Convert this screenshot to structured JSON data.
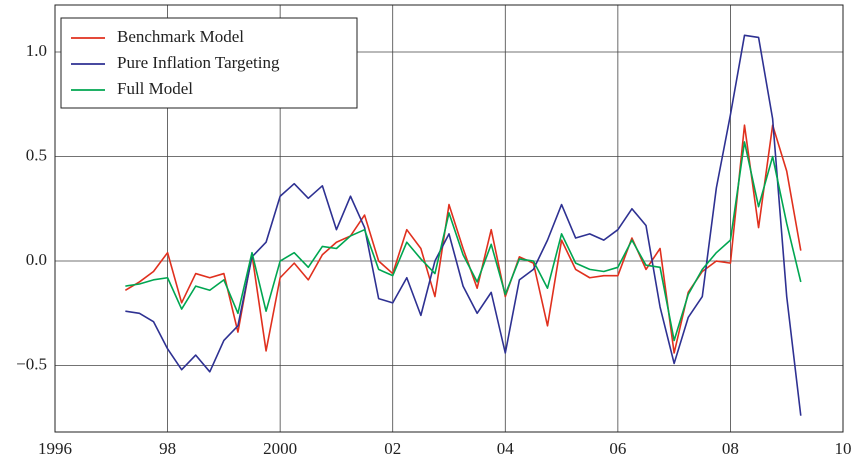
{
  "chart_data": {
    "type": "line",
    "x": [
      1997.25,
      1997.5,
      1997.75,
      1998,
      1998.25,
      1998.5,
      1998.75,
      1999,
      1999.25,
      1999.5,
      1999.75,
      2000,
      2000.25,
      2000.5,
      2000.75,
      2001,
      2001.25,
      2001.5,
      2001.75,
      2002,
      2002.25,
      2002.5,
      2002.75,
      2003,
      2003.25,
      2003.5,
      2003.75,
      2004,
      2004.25,
      2004.5,
      2004.75,
      2005,
      2005.25,
      2005.5,
      2005.75,
      2006,
      2006.25,
      2006.5,
      2006.75,
      2007,
      2007.25,
      2007.5,
      2007.75,
      2008,
      2008.25,
      2008.5,
      2008.75,
      2009,
      2009.25
    ],
    "series": [
      {
        "name": "Benchmark Model",
        "color": "#e0301e",
        "values": [
          -0.14,
          -0.1,
          -0.05,
          0.04,
          -0.2,
          -0.06,
          -0.08,
          -0.06,
          -0.34,
          0.03,
          -0.43,
          -0.08,
          -0.01,
          -0.09,
          0.03,
          0.09,
          0.12,
          0.22,
          0.0,
          -0.06,
          0.15,
          0.06,
          -0.17,
          0.27,
          0.06,
          -0.13,
          0.15,
          -0.17,
          0.02,
          -0.01,
          -0.31,
          0.1,
          -0.04,
          -0.08,
          -0.07,
          -0.07,
          0.11,
          -0.04,
          0.06,
          -0.44,
          -0.15,
          -0.05,
          0.0,
          -0.01,
          0.65,
          0.16,
          0.65,
          0.43,
          0.05
        ]
      },
      {
        "name": "Pure Inflation Targeting",
        "color": "#2e3192",
        "values": [
          -0.24,
          -0.25,
          -0.29,
          -0.42,
          -0.52,
          -0.45,
          -0.53,
          -0.38,
          -0.31,
          0.02,
          0.09,
          0.31,
          0.37,
          0.3,
          0.36,
          0.15,
          0.31,
          0.16,
          -0.18,
          -0.2,
          -0.08,
          -0.26,
          0.0,
          0.13,
          -0.12,
          -0.25,
          -0.15,
          -0.44,
          -0.09,
          -0.04,
          0.1,
          0.27,
          0.11,
          0.13,
          0.1,
          0.15,
          0.25,
          0.17,
          -0.22,
          -0.49,
          -0.27,
          -0.17,
          0.35,
          0.7,
          1.08,
          1.07,
          0.68,
          -0.17,
          -0.74
        ]
      },
      {
        "name": "Full Model",
        "color": "#00a651",
        "values": [
          -0.12,
          -0.11,
          -0.09,
          -0.08,
          -0.23,
          -0.12,
          -0.14,
          -0.09,
          -0.25,
          0.04,
          -0.24,
          0.0,
          0.04,
          -0.03,
          0.07,
          0.06,
          0.12,
          0.15,
          -0.04,
          -0.07,
          0.09,
          0.01,
          -0.06,
          0.23,
          0.03,
          -0.1,
          0.08,
          -0.16,
          0.01,
          0.0,
          -0.13,
          0.13,
          -0.01,
          -0.04,
          -0.05,
          -0.03,
          0.1,
          -0.02,
          -0.03,
          -0.38,
          -0.16,
          -0.04,
          0.04,
          0.1,
          0.57,
          0.26,
          0.5,
          0.18,
          -0.1
        ]
      }
    ],
    "xlim": [
      1996,
      2010
    ],
    "xticks": [
      1996,
      {
        "value": 1998,
        "label": "98"
      },
      2000,
      {
        "value": 2002,
        "label": "02"
      },
      {
        "value": 2004,
        "label": "04"
      },
      {
        "value": 2006,
        "label": "06"
      },
      {
        "value": 2008,
        "label": "08"
      },
      {
        "value": 2010,
        "label": "10"
      }
    ],
    "ylim": [
      -0.818,
      1.225
    ],
    "yticks": [
      {
        "value": -0.5,
        "label": "−0.5"
      },
      {
        "value": 0,
        "label": "0.0"
      },
      {
        "value": 0.5,
        "label": "0.5"
      },
      {
        "value": 1,
        "label": "1.0"
      }
    ],
    "grid": true,
    "legend": "upper left"
  }
}
